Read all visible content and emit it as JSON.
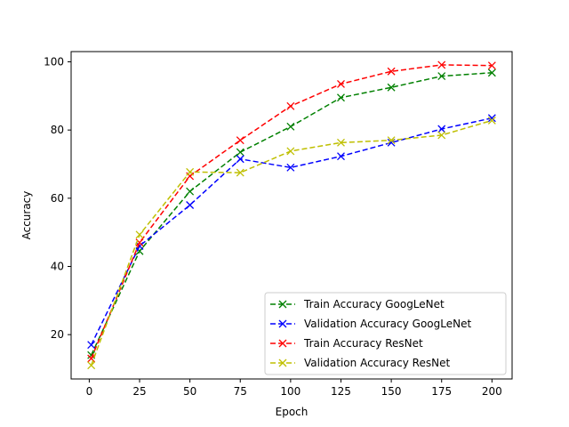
{
  "chart_data": {
    "type": "line",
    "title": "",
    "xlabel": "Epoch",
    "ylabel": "Accuracy",
    "xlim": [
      -9,
      210
    ],
    "ylim": [
      7,
      103
    ],
    "xticks": [
      0,
      25,
      50,
      75,
      100,
      125,
      150,
      175,
      200
    ],
    "yticks": [
      20,
      40,
      60,
      80,
      100
    ],
    "grid": false,
    "legend_position": "lower-right",
    "x": [
      1,
      25,
      50,
      75,
      100,
      125,
      150,
      175,
      200
    ],
    "series": [
      {
        "name": "Train Accuracy GoogLeNet",
        "color": "#008000",
        "marker": "x",
        "linestyle": "dashed",
        "values": [
          14.0,
          44.5,
          62.0,
          73.5,
          81.0,
          89.5,
          92.5,
          95.8,
          96.8
        ]
      },
      {
        "name": "Validation Accuracy GoogLeNet",
        "color": "#0000ff",
        "marker": "x",
        "linestyle": "dashed",
        "values": [
          17.0,
          46.0,
          58.0,
          71.5,
          69.0,
          72.3,
          76.3,
          80.3,
          83.5
        ]
      },
      {
        "name": "Train Accuracy ResNet",
        "color": "#ff0000",
        "marker": "x",
        "linestyle": "dashed",
        "values": [
          13.0,
          47.0,
          66.5,
          77.0,
          87.0,
          93.5,
          97.2,
          99.1,
          98.9
        ]
      },
      {
        "name": "Validation Accuracy ResNet",
        "color": "#bfbf00",
        "marker": "x",
        "linestyle": "dashed",
        "values": [
          11.0,
          49.3,
          67.7,
          67.5,
          73.8,
          76.3,
          77.0,
          78.5,
          82.8
        ]
      }
    ]
  }
}
